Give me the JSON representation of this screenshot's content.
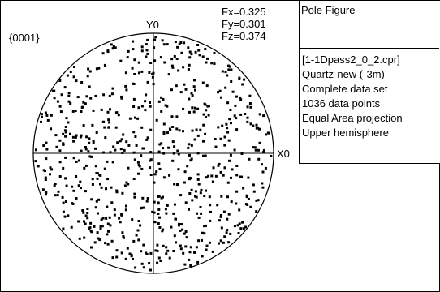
{
  "chart_data": {
    "type": "scatter",
    "title": "Pole Figure",
    "pole_label": "{0001}",
    "axis_x_label": "X0",
    "axis_y_label": "Y0",
    "components": [
      {
        "label": "Fx=0.325"
      },
      {
        "label": "Fy=0.301"
      },
      {
        "label": "Fz=0.374"
      }
    ],
    "info_lines": [
      "[1-1Dpass2_0_2.cpr]",
      "Quartz-new (-3m)",
      "Complete data set",
      "1036 data points",
      "Equal Area projection",
      "Upper hemisphere"
    ],
    "n_points": 1036,
    "projection": "equal-area",
    "hemisphere": "upper",
    "x_range": [
      -1,
      1
    ],
    "y_range": [
      -1,
      1
    ],
    "marker_color": "#000000"
  }
}
